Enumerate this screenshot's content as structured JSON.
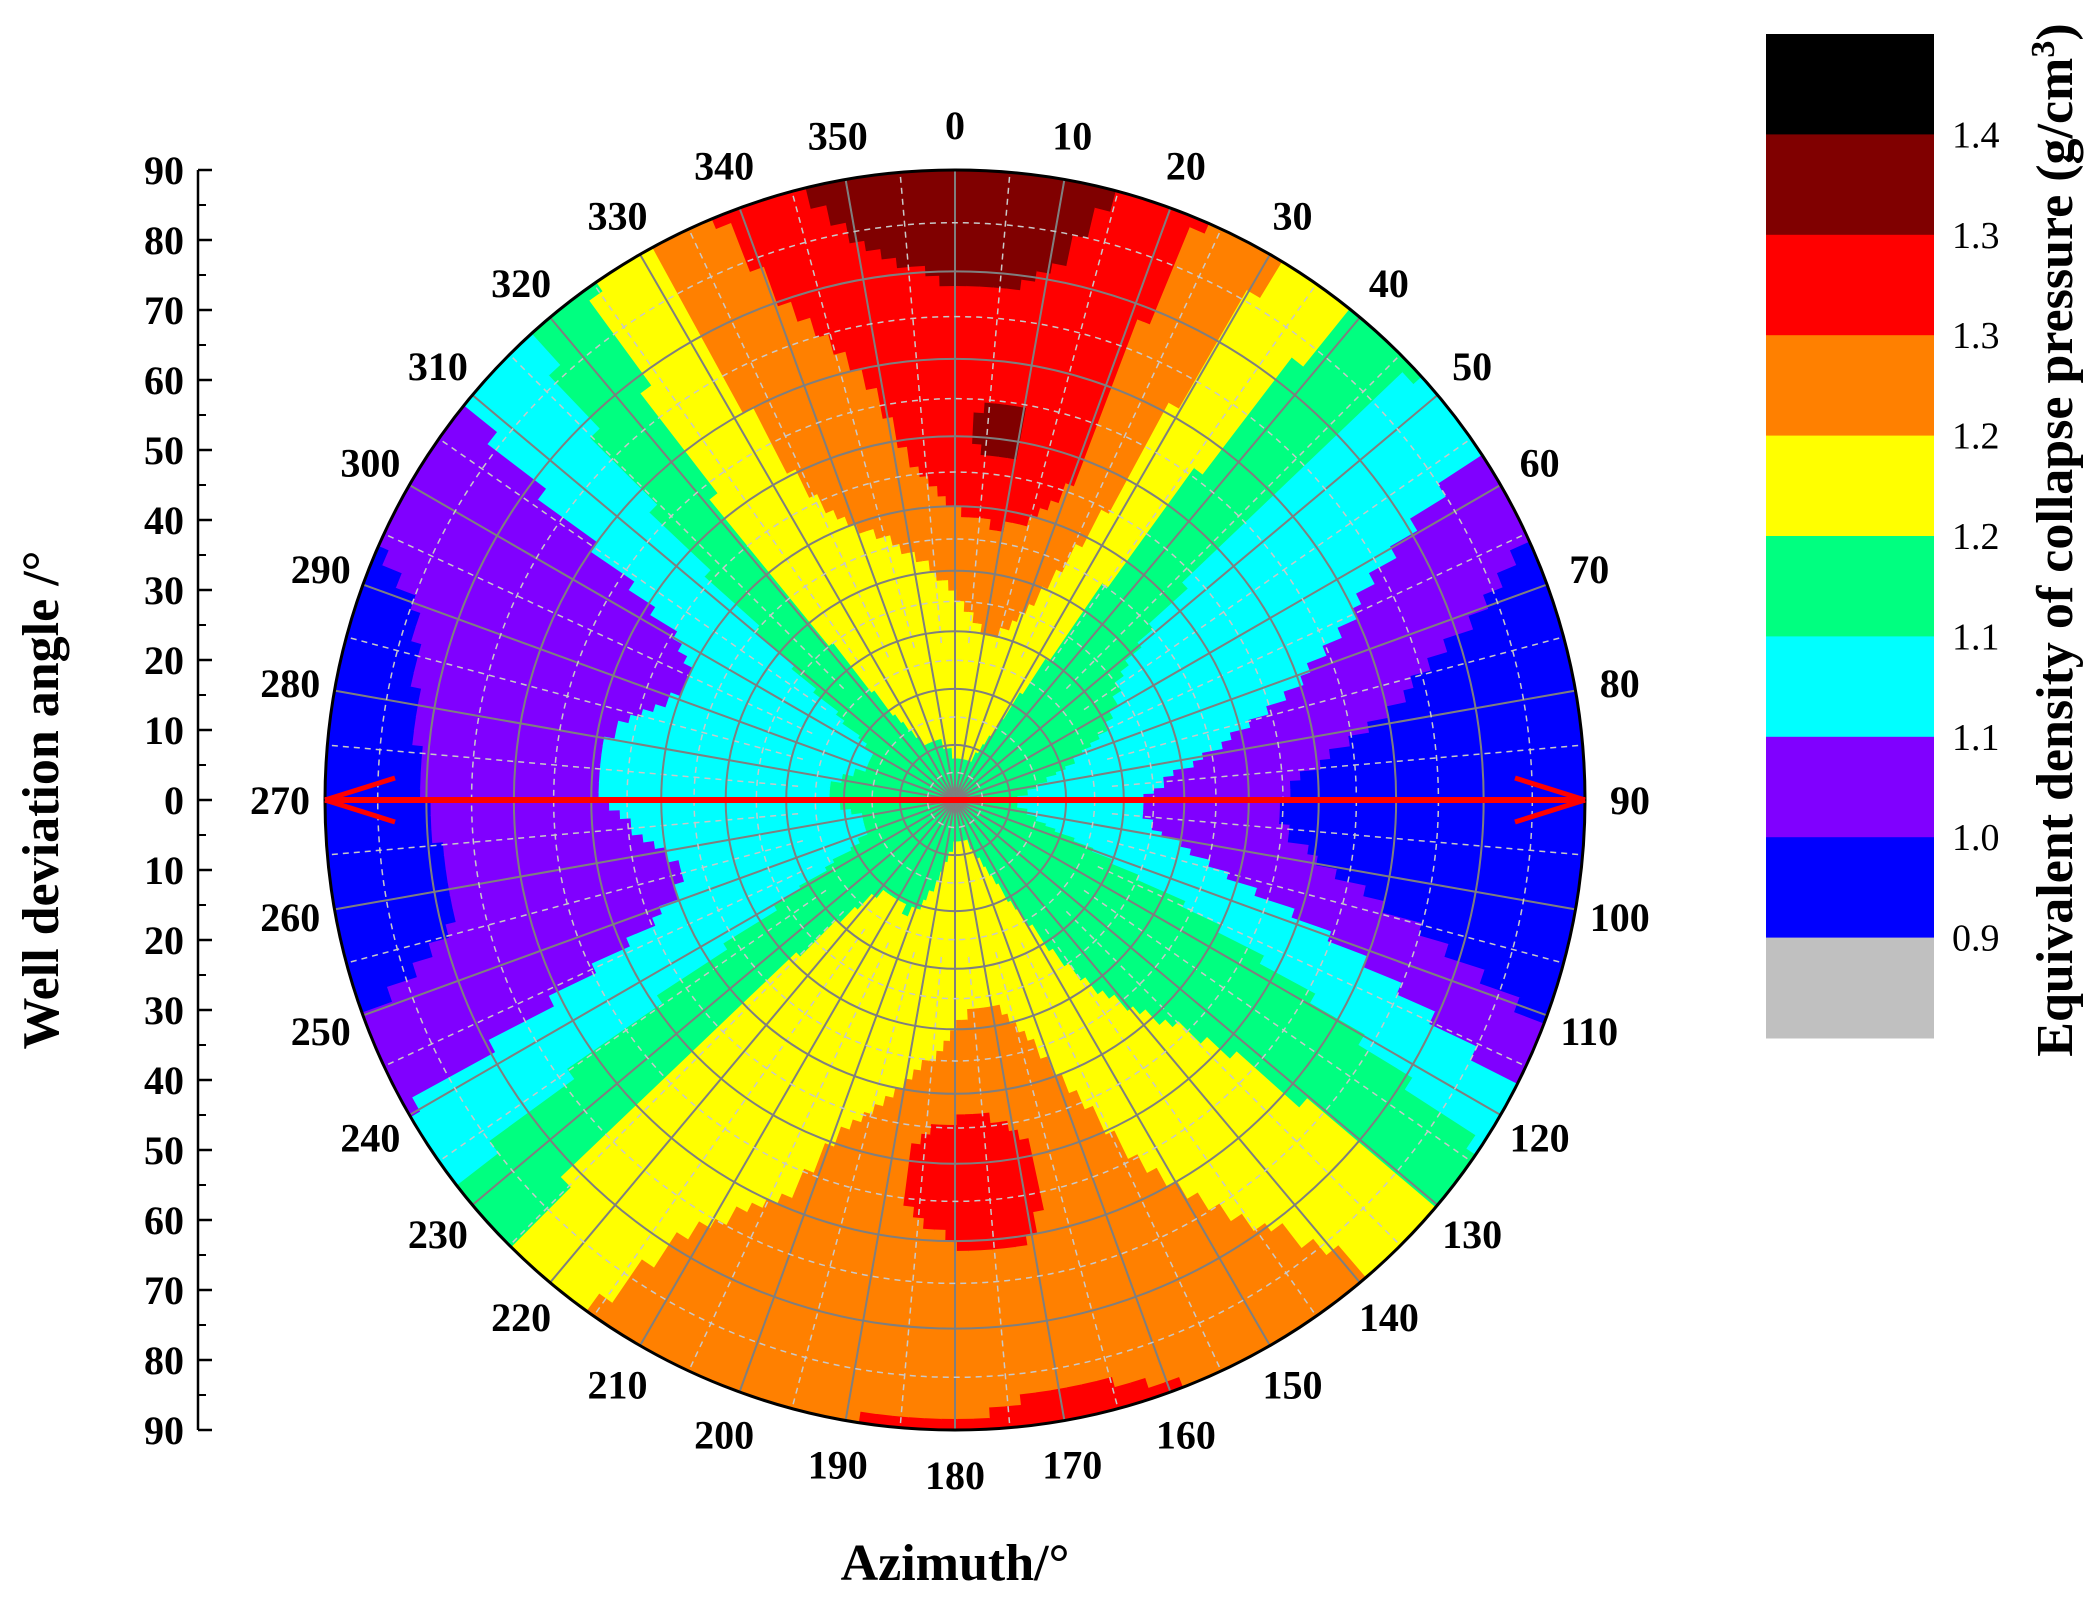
{
  "chart_data": {
    "type": "heatmap",
    "subtype": "polar-contour",
    "xlabel": "Azimuth/°",
    "ylabel": "Well deviation angle /°",
    "colorbar_label": "Equivalent density of collapse pressure (g/cm",
    "colorbar_label_sup": "3",
    "colorbar_label_end": ")",
    "azimuth_range": [
      0,
      360
    ],
    "azimuth_ticks": [
      "0",
      "10",
      "20",
      "30",
      "40",
      "50",
      "60",
      "70",
      "80",
      "90",
      "100",
      "110",
      "120",
      "130",
      "140",
      "150",
      "160",
      "170",
      "180",
      "190",
      "200",
      "210",
      "220",
      "230",
      "240",
      "250",
      "260",
      "270",
      "280",
      "290",
      "300",
      "310",
      "320",
      "330",
      "340",
      "350"
    ],
    "deviation_range": [
      0,
      90
    ],
    "deviation_ticks": [
      "90",
      "80",
      "70",
      "60",
      "50",
      "40",
      "30",
      "20",
      "10",
      "0",
      "10",
      "20",
      "30",
      "40",
      "50",
      "60",
      "70",
      "80",
      "90"
    ],
    "colorbar_levels": [
      "1.4",
      "1.3",
      "1.3",
      "1.2",
      "1.2",
      "1.1",
      "1.1",
      "1.0",
      "0.9"
    ],
    "colorbar_colors": [
      "#000000",
      "#800000",
      "#ff0000",
      "#ff8000",
      "#ffff00",
      "#00ff80",
      "#00ffff",
      "#8000ff",
      "#0000ff",
      "#c0c0c0"
    ],
    "arrow_direction_azimuths": [
      270,
      90
    ],
    "arrow_color": "#ff0000",
    "grid": true,
    "contour_regions": [
      {
        "level": "0.9-1.0",
        "color": "#0000ff",
        "center_azimuth": 90,
        "deviation_range": [
          45,
          90
        ]
      },
      {
        "level": "0.9-1.0",
        "color": "#0000ff",
        "center_azimuth": 270,
        "deviation_range": [
          45,
          90
        ]
      },
      {
        "level": "1.0-1.1",
        "color": "#8000ff",
        "center_azimuth": 90,
        "deviation_range": [
          40,
          90
        ]
      },
      {
        "level": "1.0-1.1",
        "color": "#8000ff",
        "center_azimuth": 270,
        "deviation_range": [
          40,
          90
        ]
      },
      {
        "level": "1.3-1.4",
        "color": "#800000",
        "center_azimuth": 5,
        "deviation_range": [
          45,
          65
        ]
      },
      {
        "level": "1.3-1.4",
        "color": "#800000",
        "center_azimuth": 183,
        "deviation_range": [
          48,
          65
        ]
      },
      {
        "level": "1.3",
        "color": "#ff0000",
        "center_azimuth": 0,
        "deviation_range": [
          30,
          90
        ]
      },
      {
        "level": "1.3",
        "color": "#ff0000",
        "center_azimuth": 180,
        "deviation_range": [
          35,
          90
        ]
      }
    ]
  }
}
